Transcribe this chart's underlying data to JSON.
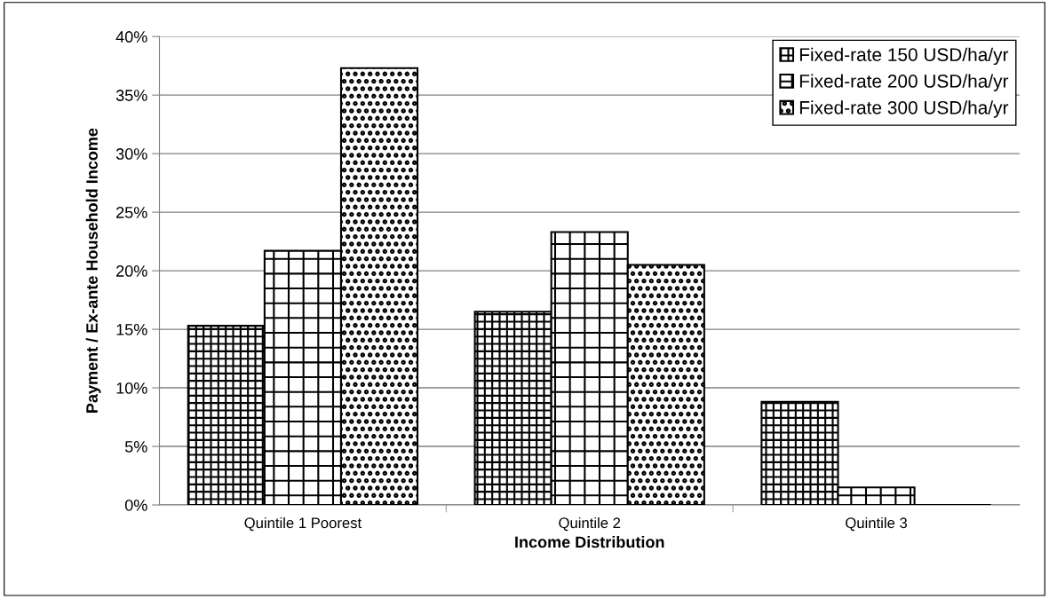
{
  "chart_data": {
    "type": "bar",
    "xlabel": "Income Distribution",
    "ylabel": "Payment / Ex-ante Household Income",
    "categories": [
      "Quintile 1 Poorest",
      "Quintile 2",
      "Quintile 3"
    ],
    "series": [
      {
        "name": "Fixed-rate 150 USD/ha/yr",
        "color": "#000000",
        "values": [
          15.3,
          16.5,
          8.8
        ]
      },
      {
        "name": "Fixed-rate 200 USD/ha/yr",
        "color": "#000000",
        "values": [
          21.7,
          23.3,
          1.5
        ]
      },
      {
        "name": "Fixed-rate 300 USD/ha/yr",
        "color": "#000000",
        "values": [
          37.3,
          20.5,
          0
        ]
      }
    ],
    "ylim": [
      0,
      40
    ],
    "yticks": [
      {
        "value": 0,
        "label": "0%"
      },
      {
        "value": 5,
        "label": "5%"
      },
      {
        "value": 10,
        "label": "10%"
      },
      {
        "value": 15,
        "label": "15%"
      },
      {
        "value": 20,
        "label": "20%"
      },
      {
        "value": 25,
        "label": "25%"
      },
      {
        "value": 30,
        "label": "30%"
      },
      {
        "value": 35,
        "label": "35%"
      },
      {
        "value": 40,
        "label": "40%"
      }
    ],
    "grid": "y",
    "legend": "top right"
  }
}
